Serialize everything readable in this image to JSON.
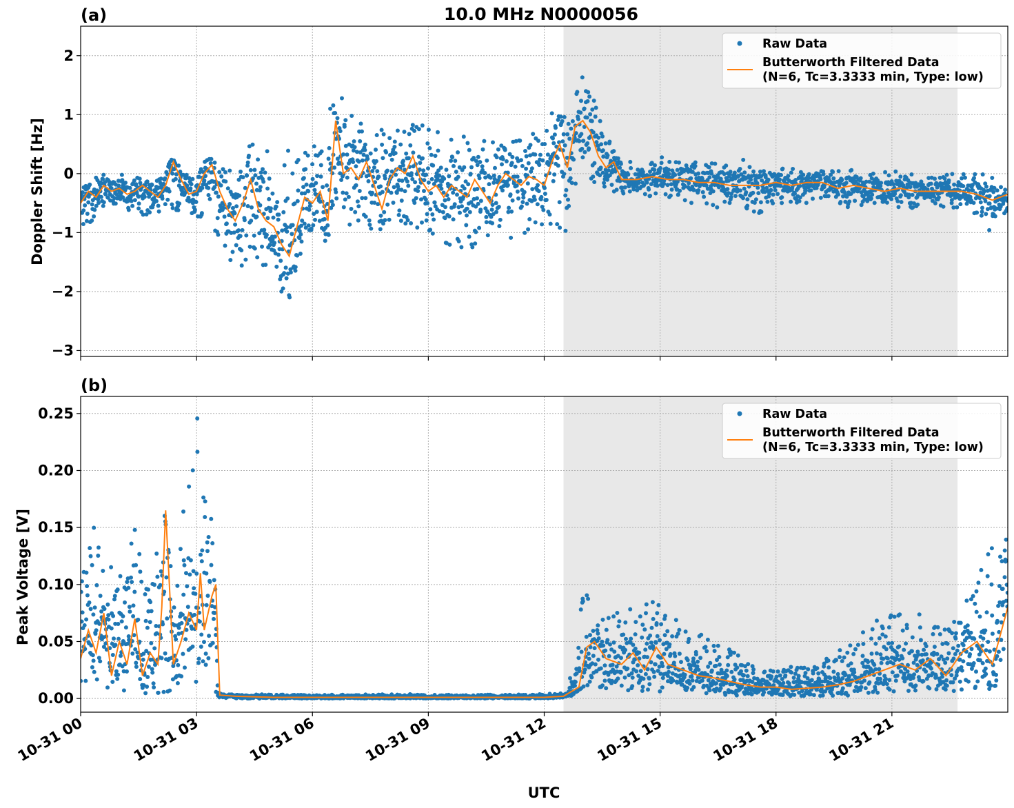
{
  "chart_data": [
    {
      "panel_label": "(a)",
      "title": "10.0 MHz N0000056",
      "type": "scatter+line",
      "ylabel": "Doppler Shift [Hz]",
      "xlabel": "",
      "x_range_hours": [
        0,
        24
      ],
      "ylim": [
        -3.1,
        2.5
      ],
      "yticks": [
        -3,
        -2,
        -1,
        0,
        1,
        2
      ],
      "ytick_labels": [
        "−3",
        "−2",
        "−1",
        "0",
        "1",
        "2"
      ],
      "shaded_span_hours": [
        12.5,
        22.7
      ],
      "grid": true,
      "legend": {
        "position": "top-right",
        "entries": [
          {
            "label": "Raw Data",
            "marker": "dot",
            "color": "#1f77b4"
          },
          {
            "label": "Butterworth Filtered Data",
            "label2": "(N=6, Tc=3.3333 min, Type: low)",
            "marker": "line",
            "color": "#ff7f0e"
          }
        ]
      },
      "series": [
        {
          "name": "Raw Data",
          "color": "#1f77b4",
          "envelope": {
            "x": [
              0,
              0.3,
              0.6,
              1.0,
              1.5,
              2.0,
              2.4,
              2.7,
              3.0,
              3.3,
              3.6,
              3.9,
              4.2,
              4.5,
              4.8,
              5.1,
              5.4,
              5.7,
              6.0,
              6.3,
              6.5,
              6.7,
              7.0,
              7.5,
              8.0,
              8.5,
              9.0,
              9.5,
              10.0,
              10.5,
              11.0,
              11.5,
              12.0,
              12.3,
              12.5,
              12.7,
              13.0,
              13.2,
              13.5,
              13.8,
              14.2,
              14.6,
              15.0,
              15.5,
              16.0,
              16.5,
              17.0,
              17.5,
              18.0,
              18.5,
              19.0,
              19.5,
              20.0,
              20.5,
              21.0,
              21.5,
              22.0,
              22.5,
              23.0,
              23.5,
              24.0
            ],
            "upper": [
              -0.05,
              -0.1,
              0.0,
              0.0,
              -0.05,
              -0.1,
              0.3,
              0.0,
              -0.05,
              0.3,
              0.1,
              0.2,
              0.4,
              0.6,
              0.4,
              0.3,
              0.5,
              0.7,
              0.6,
              0.8,
              1.2,
              1.4,
              1.0,
              0.7,
              0.8,
              0.9,
              0.8,
              0.6,
              0.7,
              0.6,
              0.6,
              0.6,
              0.9,
              1.2,
              1.1,
              1.3,
              1.8,
              1.6,
              0.8,
              0.4,
              0.2,
              0.2,
              0.3,
              0.3,
              0.2,
              0.2,
              0.3,
              0.1,
              0.1,
              0.1,
              0.05,
              0.05,
              0.1,
              0.0,
              0.05,
              0.0,
              0.0,
              0.05,
              0.0,
              0.0,
              -0.2
            ],
            "lower": [
              -1.0,
              -0.8,
              -0.7,
              -0.6,
              -0.7,
              -0.8,
              -0.6,
              -0.7,
              -0.8,
              -0.7,
              -1.2,
              -1.5,
              -1.6,
              -1.4,
              -1.8,
              -2.0,
              -2.3,
              -1.7,
              -1.3,
              -1.4,
              -0.8,
              -0.6,
              -0.9,
              -1.0,
              -0.9,
              -0.9,
              -1.0,
              -1.2,
              -1.3,
              -1.3,
              -1.2,
              -1.1,
              -1.0,
              -0.9,
              -1.1,
              -0.6,
              -0.1,
              -0.2,
              -0.3,
              -0.4,
              -0.3,
              -0.4,
              -0.4,
              -0.5,
              -0.5,
              -0.6,
              -0.5,
              -0.7,
              -0.5,
              -0.5,
              -0.5,
              -0.5,
              -0.6,
              -0.5,
              -0.6,
              -0.6,
              -0.5,
              -0.6,
              -0.6,
              -1.0,
              -0.7
            ]
          }
        },
        {
          "name": "Butterworth Filtered Data",
          "color": "#ff7f0e",
          "x": [
            0,
            0.2,
            0.4,
            0.6,
            0.8,
            1.0,
            1.2,
            1.4,
            1.6,
            1.8,
            2.0,
            2.2,
            2.4,
            2.6,
            2.8,
            3.0,
            3.2,
            3.4,
            3.6,
            3.8,
            4.0,
            4.2,
            4.4,
            4.6,
            4.8,
            5.0,
            5.2,
            5.4,
            5.6,
            5.8,
            6.0,
            6.2,
            6.4,
            6.6,
            6.8,
            7.0,
            7.2,
            7.4,
            7.6,
            7.8,
            8.0,
            8.2,
            8.4,
            8.6,
            8.8,
            9.0,
            9.2,
            9.4,
            9.6,
            9.8,
            10.0,
            10.2,
            10.4,
            10.6,
            10.8,
            11.0,
            11.2,
            11.4,
            11.6,
            11.8,
            12.0,
            12.2,
            12.4,
            12.6,
            12.8,
            13.0,
            13.2,
            13.4,
            13.6,
            13.8,
            14.0,
            14.4,
            14.8,
            15.2,
            15.6,
            16.0,
            16.4,
            16.8,
            17.2,
            17.6,
            18.0,
            18.4,
            18.8,
            19.2,
            19.6,
            20.0,
            20.4,
            20.8,
            21.2,
            21.6,
            22.0,
            22.4,
            22.8,
            23.2,
            23.6,
            24.0
          ],
          "y": [
            -0.5,
            -0.3,
            -0.4,
            -0.2,
            -0.3,
            -0.25,
            -0.35,
            -0.3,
            -0.2,
            -0.3,
            -0.4,
            -0.2,
            0.2,
            -0.1,
            -0.35,
            -0.3,
            0.0,
            0.15,
            -0.3,
            -0.6,
            -0.8,
            -0.5,
            -0.1,
            -0.6,
            -0.8,
            -0.9,
            -1.2,
            -1.4,
            -0.9,
            -0.4,
            -0.5,
            -0.3,
            -0.8,
            0.9,
            0.0,
            0.1,
            -0.1,
            0.2,
            -0.2,
            -0.6,
            -0.1,
            0.1,
            0.0,
            0.3,
            -0.1,
            -0.3,
            -0.2,
            -0.4,
            -0.2,
            -0.3,
            -0.4,
            -0.1,
            -0.3,
            -0.5,
            -0.2,
            0.0,
            -0.1,
            -0.2,
            -0.05,
            -0.1,
            -0.2,
            0.2,
            0.5,
            0.1,
            0.8,
            0.9,
            0.7,
            0.3,
            0.1,
            0.2,
            -0.1,
            -0.1,
            -0.05,
            -0.1,
            -0.1,
            -0.15,
            -0.15,
            -0.2,
            -0.2,
            -0.2,
            -0.15,
            -0.2,
            -0.15,
            -0.15,
            -0.25,
            -0.2,
            -0.25,
            -0.3,
            -0.25,
            -0.3,
            -0.3,
            -0.3,
            -0.3,
            -0.35,
            -0.45,
            -0.35
          ]
        }
      ]
    },
    {
      "panel_label": "(b)",
      "title": "",
      "type": "scatter+line",
      "ylabel": "Peak Voltage [V]",
      "xlabel": "UTC",
      "x_range_hours": [
        0,
        24
      ],
      "ylim": [
        -0.012,
        0.265
      ],
      "yticks": [
        0.0,
        0.05,
        0.1,
        0.15,
        0.2,
        0.25
      ],
      "ytick_labels": [
        "0.00",
        "0.05",
        "0.10",
        "0.15",
        "0.20",
        "0.25"
      ],
      "xticks_hours": [
        0,
        3,
        6,
        9,
        12,
        15,
        18,
        21
      ],
      "xtick_labels": [
        "10-31 00",
        "10-31 03",
        "10-31 06",
        "10-31 09",
        "10-31 12",
        "10-31 15",
        "10-31 18",
        "10-31 21"
      ],
      "shaded_span_hours": [
        12.5,
        22.7
      ],
      "grid": true,
      "legend": {
        "position": "top-right",
        "entries": [
          {
            "label": "Raw Data",
            "marker": "dot",
            "color": "#1f77b4"
          },
          {
            "label": "Butterworth Filtered Data",
            "label2": "(N=6, Tc=3.3333 min, Type: low)",
            "marker": "line",
            "color": "#ff7f0e"
          }
        ]
      },
      "series": [
        {
          "name": "Raw Data",
          "color": "#1f77b4",
          "envelope": {
            "x": [
              0,
              0.3,
              0.6,
              1.0,
              1.4,
              1.8,
              2.1,
              2.4,
              2.7,
              3.0,
              3.2,
              3.45,
              3.55,
              4.0,
              6.0,
              8.0,
              10.0,
              12.0,
              12.6,
              13.0,
              13.2,
              13.5,
              14.0,
              14.5,
              15.0,
              15.5,
              16.0,
              16.5,
              17.0,
              17.5,
              18.0,
              18.5,
              19.0,
              19.5,
              20.0,
              20.5,
              21.0,
              21.5,
              22.0,
              22.5,
              23.0,
              23.5,
              24.0
            ],
            "upper": [
              0.1,
              0.17,
              0.12,
              0.11,
              0.15,
              0.09,
              0.18,
              0.1,
              0.18,
              0.25,
              0.21,
              0.15,
              0.005,
              0.004,
              0.003,
              0.004,
              0.003,
              0.004,
              0.005,
              0.1,
              0.09,
              0.08,
              0.08,
              0.08,
              0.09,
              0.07,
              0.06,
              0.05,
              0.04,
              0.03,
              0.025,
              0.03,
              0.03,
              0.04,
              0.05,
              0.07,
              0.08,
              0.07,
              0.08,
              0.06,
              0.1,
              0.13,
              0.15
            ],
            "lower": [
              0.01,
              0.005,
              0.005,
              0.005,
              0.004,
              0.005,
              0.005,
              0.005,
              0.005,
              0.005,
              0.005,
              0.01,
              0.0,
              0.0,
              0.0,
              0.0,
              0.0,
              0.0,
              0.0,
              0.01,
              0.01,
              0.008,
              0.005,
              0.005,
              0.005,
              0.004,
              0.003,
              0.003,
              0.002,
              0.002,
              0.002,
              0.002,
              0.002,
              0.002,
              0.003,
              0.003,
              0.005,
              0.005,
              0.005,
              0.005,
              0.006,
              0.008,
              0.01
            ]
          }
        },
        {
          "name": "Butterworth Filtered Data",
          "color": "#ff7f0e",
          "x": [
            0,
            0.2,
            0.4,
            0.6,
            0.8,
            1.0,
            1.2,
            1.4,
            1.6,
            1.8,
            2.0,
            2.1,
            2.2,
            2.4,
            2.6,
            2.8,
            3.0,
            3.1,
            3.2,
            3.4,
            3.5,
            3.6,
            4.0,
            5.0,
            6.0,
            7.0,
            8.0,
            9.0,
            10.0,
            11.0,
            12.0,
            12.5,
            12.9,
            13.1,
            13.3,
            13.6,
            14.0,
            14.3,
            14.6,
            14.9,
            15.2,
            15.6,
            16.0,
            16.4,
            16.8,
            17.2,
            17.6,
            18.0,
            18.4,
            18.8,
            19.2,
            19.6,
            20.0,
            20.4,
            20.8,
            21.2,
            21.6,
            22.0,
            22.4,
            22.8,
            23.2,
            23.6,
            24.0
          ],
          "y": [
            0.035,
            0.06,
            0.04,
            0.075,
            0.02,
            0.05,
            0.03,
            0.07,
            0.02,
            0.04,
            0.03,
            0.08,
            0.165,
            0.03,
            0.05,
            0.075,
            0.06,
            0.11,
            0.06,
            0.09,
            0.1,
            0.003,
            0.002,
            0.001,
            0.001,
            0.001,
            0.001,
            0.001,
            0.001,
            0.001,
            0.001,
            0.002,
            0.01,
            0.045,
            0.05,
            0.035,
            0.03,
            0.04,
            0.025,
            0.045,
            0.03,
            0.025,
            0.02,
            0.018,
            0.015,
            0.012,
            0.01,
            0.01,
            0.008,
            0.009,
            0.01,
            0.012,
            0.015,
            0.02,
            0.025,
            0.03,
            0.025,
            0.035,
            0.02,
            0.04,
            0.05,
            0.03,
            0.08
          ]
        }
      ]
    }
  ]
}
